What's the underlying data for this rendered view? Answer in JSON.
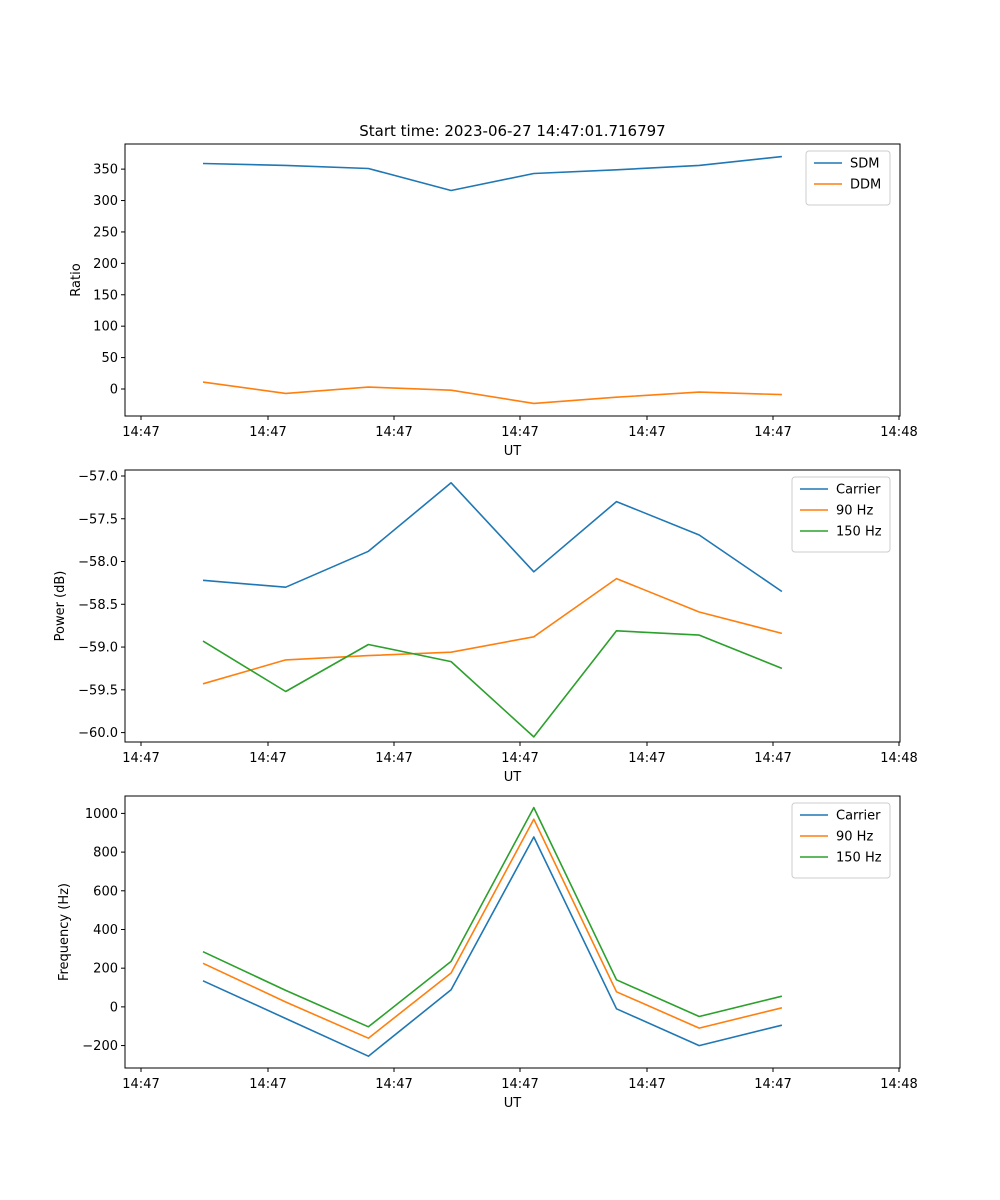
{
  "figure": {
    "title": "Start time: 2023-06-27 14:47:01.716797"
  },
  "chart_data": [
    {
      "type": "line",
      "title": "Start time: 2023-06-27 14:47:01.716797",
      "xlabel": "UT",
      "ylabel": "Ratio",
      "x_ticks": [
        "14:47",
        "14:47",
        "14:47",
        "14:47",
        "14:47",
        "14:47",
        "14:48"
      ],
      "y_ticks": [
        0,
        50,
        100,
        150,
        200,
        250,
        300,
        350
      ],
      "ylim": [
        -43,
        390
      ],
      "grid": false,
      "legend_position": "upper-right",
      "series": [
        {
          "name": "SDM",
          "color": "#1f77b4",
          "values": [
            359,
            356,
            351,
            316,
            343,
            349,
            356,
            370
          ]
        },
        {
          "name": "DDM",
          "color": "#ff7f0e",
          "values": [
            11,
            -7,
            3,
            -2,
            -23,
            -13,
            -5,
            -9
          ]
        }
      ]
    },
    {
      "type": "line",
      "xlabel": "UT",
      "ylabel": "Power (dB)",
      "x_ticks": [
        "14:47",
        "14:47",
        "14:47",
        "14:47",
        "14:47",
        "14:47",
        "14:48"
      ],
      "y_ticks": [
        -60.0,
        -59.5,
        -59.0,
        -58.5,
        -58.0,
        -57.5,
        -57.0
      ],
      "ylim": [
        -60.11,
        -56.93
      ],
      "grid": false,
      "legend_position": "upper-right",
      "series": [
        {
          "name": "Carrier",
          "color": "#1f77b4",
          "values": [
            -58.22,
            -58.3,
            -57.88,
            -57.08,
            -58.12,
            -57.3,
            -57.69,
            -58.35
          ]
        },
        {
          "name": "90 Hz",
          "color": "#ff7f0e",
          "values": [
            -59.43,
            -59.15,
            -59.1,
            -59.06,
            -58.88,
            -58.2,
            -58.59,
            -58.84
          ]
        },
        {
          "name": "150 Hz",
          "color": "#2ca02c",
          "values": [
            -58.93,
            -59.52,
            -58.97,
            -59.17,
            -60.05,
            -58.81,
            -58.86,
            -59.25
          ]
        }
      ]
    },
    {
      "type": "line",
      "xlabel": "UT",
      "ylabel": "Frequency (Hz)",
      "x_ticks": [
        "14:47",
        "14:47",
        "14:47",
        "14:47",
        "14:47",
        "14:47",
        "14:48"
      ],
      "y_ticks": [
        -200,
        0,
        200,
        400,
        600,
        800,
        1000
      ],
      "ylim": [
        -316,
        1090
      ],
      "grid": false,
      "legend_position": "upper-right",
      "series": [
        {
          "name": "Carrier",
          "color": "#1f77b4",
          "values": [
            135,
            -60,
            -255,
            88,
            878,
            -10,
            -200,
            -95
          ]
        },
        {
          "name": "90 Hz",
          "color": "#ff7f0e",
          "values": [
            225,
            25,
            -162,
            175,
            970,
            78,
            -110,
            -5
          ]
        },
        {
          "name": "150 Hz",
          "color": "#2ca02c",
          "values": [
            285,
            85,
            -103,
            235,
            1030,
            140,
            -50,
            55
          ]
        }
      ]
    }
  ]
}
